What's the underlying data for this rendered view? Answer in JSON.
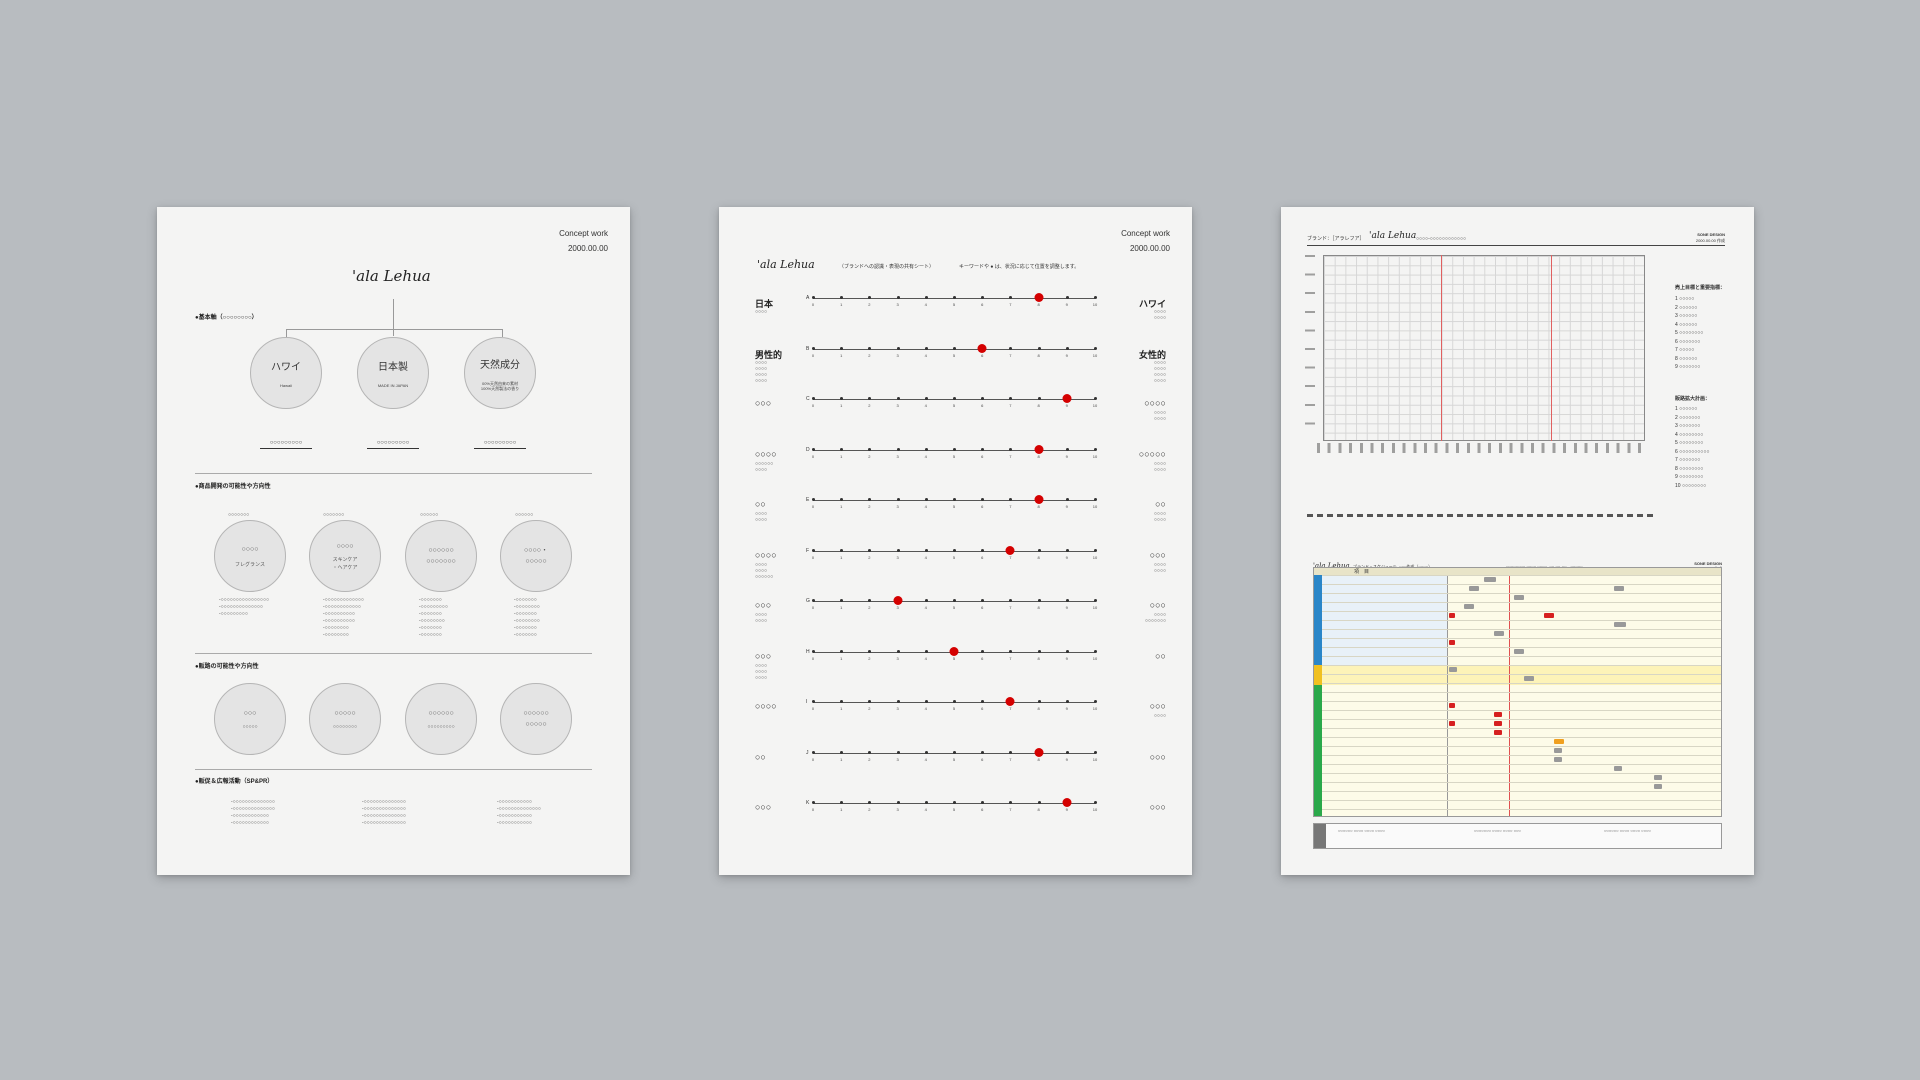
{
  "sheet1": {
    "header": {
      "title": "Concept work",
      "date": "2000.00.00"
    },
    "logo": "'ala Lehua",
    "section1": "●基本軸（○○○○○○○○）",
    "pillars": [
      {
        "label": "ハワイ",
        "sub": "Hawaii",
        "caption": "○○○○○○○○○"
      },
      {
        "label": "日本製",
        "sub": "MADE IN JAPAN",
        "caption": "○○○○○○○○○"
      },
      {
        "label": "天然成分",
        "sub": "00%天然由来の素材\n100%天然製法の香り",
        "caption": "○○○○○○○○○"
      }
    ],
    "section2": "●商品開発の可能性や方向性",
    "products": [
      {
        "top": "○○○○○○○",
        "line1": "○○○○",
        "line2": "フレグランス",
        "notes": "-○○○○○○○○○○○○○○○○\n-○○○○○○○○○○○○○○\n-○○○○○○○○○"
      },
      {
        "top": "○○○○○○○",
        "line1": "○○○○",
        "line2": "スキンケア\n・ヘアケア",
        "notes": "-○○○○○○○○○○○○○\n-○○○○○○○○○○○○\n-○○○○○○○○○○\n-○○○○○○○○○○\n-○○○○○○○○\n-○○○○○○○○"
      },
      {
        "top": "○○○○○○",
        "line1": "○○○○○○",
        "line2": "○○○○○○○",
        "notes": "-○○○○○○○\n-○○○○○○○○○\n-○○○○○○○\n-○○○○○○○○\n-○○○○○○○\n-○○○○○○○"
      },
      {
        "top": "○○○○○○",
        "line1": "○○○○・",
        "line2": "○○○○○",
        "notes": "-○○○○○○○\n-○○○○○○○○\n-○○○○○○○\n-○○○○○○○○\n-○○○○○○○\n-○○○○○○○"
      }
    ],
    "section3": "●販路の可能性や方向性",
    "channels": [
      {
        "line1": "○○○",
        "line2": "○○○○○"
      },
      {
        "line1": "○○○○○",
        "line2": "○○○○○○○○"
      },
      {
        "line1": "○○○○○○",
        "line2": "○○○○○○○○○"
      },
      {
        "line1": "○○○○○○",
        "line2": "○○○○○"
      }
    ],
    "section4": "●販促＆広報活動（SP&PR）",
    "promo": [
      "-○○○○○○○○○○○○○○\n-○○○○○○○○○○○○○○\n-○○○○○○○○○○○○\n-○○○○○○○○○○○○",
      "-○○○○○○○○○○○○○○\n-○○○○○○○○○○○○○○\n-○○○○○○○○○○○○○○\n-○○○○○○○○○○○○○○",
      "-○○○○○○○○○○○\n-○○○○○○○○○○○○○○\n-○○○○○○○○○○○\n-○○○○○○○○○○○"
    ]
  },
  "sheet2": {
    "header": {
      "title": "Concept work",
      "date": "2000.00.00"
    },
    "logo": "'ala Lehua",
    "subtitle": "（ブランドへの認識・表現の共有シート）",
    "legend": "キーワードや ● は、状況に応じて位置を調整します。",
    "ticks": [
      "0",
      "1",
      "2",
      "3",
      "4",
      "5",
      "6",
      "7",
      "8",
      "9",
      "10"
    ],
    "scales": [
      {
        "letter": "A",
        "left": "日本",
        "left_sub": "○○○○",
        "right": "ハワイ",
        "right_sub": "○○○○\n○○○○",
        "value": 8
      },
      {
        "letter": "B",
        "left": "男性的",
        "left_sub": "○○○○\n○○○○\n○○○○\n○○○○",
        "right": "女性的",
        "right_sub": "○○○○\n○○○○\n○○○○\n○○○○",
        "value": 6
      },
      {
        "letter": "C",
        "left": "○○○",
        "left_sub": "",
        "right": "○○○○",
        "right_sub": "○○○○\n○○○○",
        "value": 9
      },
      {
        "letter": "D",
        "left": "○○○○",
        "left_sub": "○○○○○○\n○○○○",
        "right": "○○○○○",
        "right_sub": "○○○○\n○○○○",
        "value": 8
      },
      {
        "letter": "E",
        "left": "○○",
        "left_sub": "○○○○\n○○○○",
        "right": "○○",
        "right_sub": "○○○○\n○○○○",
        "value": 8
      },
      {
        "letter": "F",
        "left": "○○○○",
        "left_sub": "○○○○\n○○○○\n○○○○○○",
        "right": "○○○",
        "right_sub": "○○○○\n○○○○",
        "value": 7
      },
      {
        "letter": "G",
        "left": "○○○",
        "left_sub": "○○○○\n○○○○",
        "right": "○○○",
        "right_sub": "○○○○\n○○○○○○○",
        "value": 3
      },
      {
        "letter": "H",
        "left": "○○○",
        "left_sub": "○○○○\n○○○○\n○○○○",
        "right": "○○",
        "right_sub": "",
        "value": 5
      },
      {
        "letter": "I",
        "left": "○○○○",
        "left_sub": "",
        "right": "○○○",
        "right_sub": "○○○○",
        "value": 7
      },
      {
        "letter": "J",
        "left": "○○",
        "left_sub": "",
        "right": "○○○",
        "right_sub": "",
        "value": 8
      },
      {
        "letter": "K",
        "left": "○○○",
        "left_sub": "",
        "right": "○○○",
        "right_sub": "",
        "value": 9
      }
    ]
  },
  "sheet3": {
    "top": {
      "brand_label": "ブランド：［アラレフア］",
      "logo": "'ala Lehua",
      "project": "○○○○-○○○○○○○○○○○○",
      "company": "SONE DESIGN",
      "date": "2000.00.00 作成",
      "side_title1": "売上目標と重要指標：",
      "side_list1": "1 ○○○○○\n2 ○○○○○○\n3 ○○○○○○\n4 ○○○○○○\n5 ○○○○○○○○\n6 ○○○○○○○\n7 ○○○○○\n8 ○○○○○○\n9 ○○○○○○○",
      "side_title2": "販路拡大計画：",
      "side_list2": "1 ○○○○○○\n2 ○○○○○○○\n3 ○○○○○○○\n4 ○○○○○○○○\n5 ○○○○○○○○\n6 ○○○○○○○○○○\n7 ○○○○○○○\n8 ○○○○○○○○\n9 ○○○○○○○○\n10 ○○○○○○○○"
    },
    "bottom": {
      "logo": "'ala Lehua",
      "title": "ブランド・スケジュール -○○○作成（○○○○）",
      "meta": "○○○○○○○○ ○○○○ ○○○○ -○○-○○-○○　○○○○○",
      "company": "SONE DESIGN",
      "date": "2000.00.00 作成",
      "header": "項　目",
      "legend1": "○○○○○○ ○○○○ ○○○○ ○○○○",
      "legend2": "○○○○○○○ ○○○○ ○○○○ ○○○",
      "legend3": "○○○○○○ ○○○○ ○○○○ ○○○○"
    }
  }
}
